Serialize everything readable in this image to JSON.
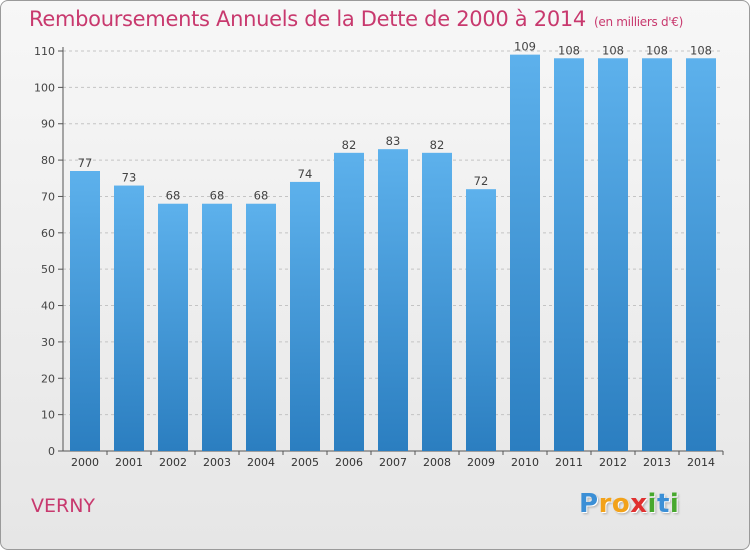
{
  "title": "Remboursements Annuels de la Dette de 2000 à 2014",
  "unit": "(en milliers d'€)",
  "commune": "VERNY",
  "logo": {
    "letters": [
      {
        "ch": "P",
        "color": "#3b8fd6"
      },
      {
        "ch": "r",
        "color": "#f2a21a"
      },
      {
        "ch": "o",
        "color": "#f2a21a"
      },
      {
        "ch": "x",
        "color": "#e0302f"
      },
      {
        "ch": "i",
        "color": "#47a82e"
      },
      {
        "ch": "t",
        "color": "#3b8fd6"
      },
      {
        "ch": "i",
        "color": "#47a82e"
      }
    ]
  },
  "colors": {
    "title": "#c8396e",
    "bar_top": "#5db1ec",
    "bar_bottom": "#2b7ec0",
    "grid": "#c4c4c4",
    "axis": "#555555"
  },
  "chart_data": {
    "type": "bar",
    "categories": [
      "2000",
      "2001",
      "2002",
      "2003",
      "2004",
      "2005",
      "2006",
      "2007",
      "2008",
      "2009",
      "2010",
      "2011",
      "2012",
      "2013",
      "2014"
    ],
    "values": [
      77,
      73,
      68,
      68,
      68,
      74,
      82,
      83,
      82,
      72,
      109,
      108,
      108,
      108,
      108
    ],
    "data_labels": [
      "77",
      "73",
      "68",
      "68",
      "68",
      "74",
      "82",
      "83",
      "82",
      "72",
      "109",
      "108",
      "108",
      "108",
      "108"
    ],
    "title": "Remboursements Annuels de la Dette de 2000 à 2014",
    "xlabel": "",
    "ylabel": "",
    "ylim": [
      0,
      110
    ],
    "yticks": [
      0,
      10,
      20,
      30,
      40,
      50,
      60,
      70,
      80,
      90,
      100,
      110
    ],
    "grid": true
  }
}
